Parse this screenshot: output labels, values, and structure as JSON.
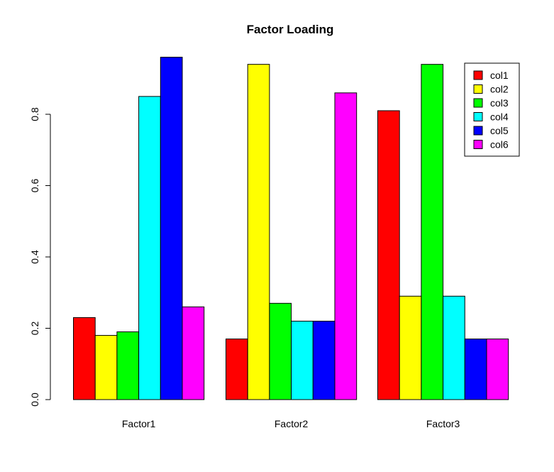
{
  "chart_data": {
    "type": "bar",
    "title": "Factor Loading",
    "xlabel": "",
    "ylabel": "",
    "categories": [
      "Factor1",
      "Factor2",
      "Factor3"
    ],
    "series": [
      {
        "name": "col1",
        "color": "#ff0000",
        "values": [
          0.23,
          0.17,
          0.81
        ]
      },
      {
        "name": "col2",
        "color": "#ffff00",
        "values": [
          0.18,
          0.94,
          0.29
        ]
      },
      {
        "name": "col3",
        "color": "#00ff00",
        "values": [
          0.19,
          0.27,
          0.94
        ]
      },
      {
        "name": "col4",
        "color": "#00ffff",
        "values": [
          0.85,
          0.22,
          0.29
        ]
      },
      {
        "name": "col5",
        "color": "#0000ff",
        "values": [
          0.96,
          0.22,
          0.17
        ]
      },
      {
        "name": "col6",
        "color": "#ff00ff",
        "values": [
          0.26,
          0.86,
          0.17
        ]
      }
    ],
    "ylim": [
      0,
      0.96
    ],
    "yticks": [
      "0.0",
      "0.2",
      "0.4",
      "0.6",
      "0.8"
    ],
    "grid": false,
    "legend_position": "top-right"
  }
}
